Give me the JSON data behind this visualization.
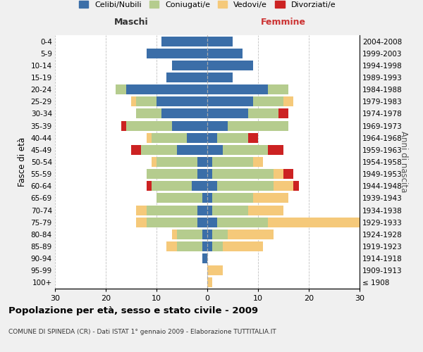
{
  "age_groups": [
    "100+",
    "95-99",
    "90-94",
    "85-89",
    "80-84",
    "75-79",
    "70-74",
    "65-69",
    "60-64",
    "55-59",
    "50-54",
    "45-49",
    "40-44",
    "35-39",
    "30-34",
    "25-29",
    "20-24",
    "15-19",
    "10-14",
    "5-9",
    "0-4"
  ],
  "birth_years": [
    "≤ 1908",
    "1909-1913",
    "1914-1918",
    "1919-1923",
    "1924-1928",
    "1929-1933",
    "1934-1938",
    "1939-1943",
    "1944-1948",
    "1949-1953",
    "1954-1958",
    "1959-1963",
    "1964-1968",
    "1969-1973",
    "1974-1978",
    "1979-1983",
    "1984-1988",
    "1989-1993",
    "1994-1998",
    "1999-2003",
    "2004-2008"
  ],
  "male": {
    "celibi": [
      0,
      0,
      1,
      1,
      1,
      2,
      2,
      1,
      3,
      2,
      2,
      6,
      4,
      7,
      9,
      10,
      16,
      8,
      7,
      12,
      9
    ],
    "coniugati": [
      0,
      0,
      0,
      5,
      5,
      10,
      10,
      9,
      8,
      10,
      8,
      7,
      7,
      9,
      5,
      4,
      2,
      0,
      0,
      0,
      0
    ],
    "vedovi": [
      0,
      0,
      0,
      2,
      1,
      2,
      2,
      0,
      0,
      0,
      1,
      0,
      1,
      0,
      0,
      1,
      0,
      0,
      0,
      0,
      0
    ],
    "divorziati": [
      0,
      0,
      0,
      0,
      0,
      0,
      0,
      0,
      1,
      0,
      0,
      2,
      0,
      1,
      0,
      0,
      0,
      0,
      0,
      0,
      0
    ]
  },
  "female": {
    "nubili": [
      0,
      0,
      0,
      1,
      1,
      2,
      1,
      1,
      2,
      1,
      1,
      3,
      2,
      4,
      8,
      9,
      12,
      5,
      9,
      7,
      5
    ],
    "coniugate": [
      0,
      0,
      0,
      2,
      3,
      10,
      7,
      8,
      11,
      12,
      8,
      9,
      6,
      12,
      6,
      6,
      4,
      0,
      0,
      0,
      0
    ],
    "vedove": [
      1,
      3,
      0,
      8,
      9,
      18,
      7,
      7,
      4,
      2,
      2,
      0,
      0,
      0,
      0,
      2,
      0,
      0,
      0,
      0,
      0
    ],
    "divorziate": [
      0,
      0,
      0,
      0,
      0,
      0,
      0,
      0,
      1,
      2,
      0,
      3,
      2,
      0,
      2,
      0,
      0,
      0,
      0,
      0,
      0
    ]
  },
  "colors": {
    "celibi": "#3B6EA8",
    "coniugati": "#B5CC8E",
    "vedovi": "#F5C97A",
    "divorziati": "#CC2222"
  },
  "title": "Popolazione per età, sesso e stato civile - 2009",
  "subtitle": "COMUNE DI SPINEDA (CR) - Dati ISTAT 1° gennaio 2009 - Elaborazione TUTTITALIA.IT",
  "xlabel_left": "Maschi",
  "xlabel_right": "Femmine",
  "ylabel_left": "Fasce di età",
  "ylabel_right": "Anni di nascita",
  "xlim": 30,
  "legend_labels": [
    "Celibi/Nubili",
    "Coniugati/e",
    "Vedovi/e",
    "Divorziati/e"
  ],
  "bg_color": "#f0f0f0",
  "plot_bg": "#ffffff"
}
